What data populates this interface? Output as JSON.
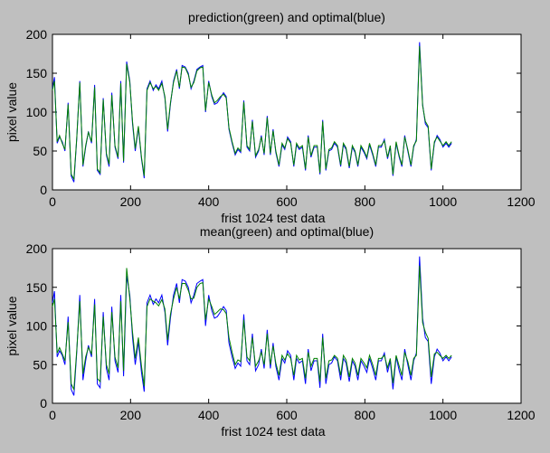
{
  "figure_background": "#bfbfbf",
  "colors": {
    "optimal": "#0000ff",
    "green": "#008000",
    "axes_bg": "#ffffff",
    "axis": "#000000"
  },
  "chart_data": [
    {
      "type": "line",
      "title": "prediction(green) and optimal(blue)",
      "xlabel": "frist 1024 test data",
      "ylabel": "pixel value",
      "xlim": [
        0,
        1200
      ],
      "ylim": [
        0,
        200
      ],
      "xticks": [
        0,
        200,
        400,
        600,
        800,
        1000,
        1200
      ],
      "yticks": [
        0,
        50,
        100,
        150,
        200
      ],
      "grid": false,
      "series": [
        {
          "color": "#0000ff",
          "x": [
            0,
            5,
            12,
            18,
            25,
            32,
            40,
            48,
            55,
            62,
            70,
            78,
            85,
            92,
            100,
            108,
            115,
            122,
            130,
            138,
            145,
            152,
            160,
            168,
            175,
            182,
            190,
            198,
            205,
            212,
            220,
            228,
            235,
            242,
            250,
            258,
            265,
            272,
            280,
            288,
            295,
            302,
            310,
            318,
            325,
            332,
            340,
            348,
            355,
            362,
            370,
            378,
            385,
            392,
            400,
            408,
            415,
            422,
            430,
            438,
            445,
            452,
            460,
            468,
            475,
            482,
            490,
            498,
            505,
            512,
            520,
            528,
            535,
            542,
            550,
            558,
            565,
            572,
            580,
            588,
            595,
            602,
            610,
            618,
            625,
            632,
            640,
            648,
            655,
            662,
            670,
            678,
            685,
            692,
            700,
            708,
            715,
            722,
            730,
            738,
            745,
            752,
            760,
            768,
            775,
            782,
            790,
            798,
            805,
            812,
            820,
            828,
            835,
            842,
            850,
            858,
            865,
            872,
            880,
            888,
            895,
            902,
            910,
            918,
            925,
            932,
            940,
            948,
            955,
            962,
            970,
            978,
            985,
            992,
            1000,
            1008,
            1015,
            1022
          ],
          "y": [
            130,
            145,
            60,
            68,
            62,
            50,
            112,
            18,
            10,
            65,
            140,
            30,
            55,
            75,
            60,
            135,
            25,
            20,
            118,
            45,
            30,
            125,
            55,
            40,
            140,
            35,
            165,
            140,
            85,
            50,
            80,
            40,
            15,
            130,
            140,
            128,
            135,
            130,
            140,
            118,
            75,
            110,
            140,
            155,
            130,
            160,
            158,
            150,
            130,
            140,
            155,
            158,
            160,
            100,
            140,
            120,
            110,
            112,
            118,
            125,
            120,
            78,
            60,
            45,
            52,
            48,
            115,
            55,
            50,
            90,
            42,
            50,
            70,
            45,
            95,
            45,
            78,
            48,
            30,
            58,
            52,
            68,
            62,
            30,
            58,
            52,
            55,
            25,
            70,
            42,
            55,
            55,
            20,
            90,
            25,
            50,
            52,
            60,
            55,
            30,
            58,
            52,
            28,
            55,
            48,
            30,
            55,
            48,
            40,
            58,
            45,
            30,
            55,
            55,
            65,
            40,
            55,
            18,
            60,
            42,
            30,
            70,
            50,
            30,
            55,
            65,
            190,
            110,
            85,
            80,
            25,
            60,
            70,
            65,
            55,
            60,
            55,
            60
          ]
        },
        {
          "color": "#008000",
          "x": [
            0,
            5,
            12,
            18,
            25,
            32,
            40,
            48,
            55,
            62,
            70,
            78,
            85,
            92,
            100,
            108,
            115,
            122,
            130,
            138,
            145,
            152,
            160,
            168,
            175,
            182,
            190,
            198,
            205,
            212,
            220,
            228,
            235,
            242,
            250,
            258,
            265,
            272,
            280,
            288,
            295,
            302,
            310,
            318,
            325,
            332,
            340,
            348,
            355,
            362,
            370,
            378,
            385,
            392,
            400,
            408,
            415,
            422,
            430,
            438,
            445,
            452,
            460,
            468,
            475,
            482,
            490,
            498,
            505,
            512,
            520,
            528,
            535,
            542,
            550,
            558,
            565,
            572,
            580,
            588,
            595,
            602,
            610,
            618,
            625,
            632,
            640,
            648,
            655,
            662,
            670,
            678,
            685,
            692,
            700,
            708,
            715,
            722,
            730,
            738,
            745,
            752,
            760,
            768,
            775,
            782,
            790,
            798,
            805,
            812,
            820,
            828,
            835,
            842,
            850,
            858,
            865,
            872,
            880,
            888,
            895,
            902,
            910,
            918,
            925,
            932,
            940,
            948,
            955,
            962,
            970,
            978,
            985,
            992,
            1000,
            1008,
            1015,
            1022
          ],
          "y": [
            128,
            140,
            62,
            70,
            60,
            52,
            110,
            20,
            14,
            66,
            138,
            32,
            57,
            74,
            62,
            132,
            27,
            22,
            116,
            47,
            33,
            122,
            57,
            42,
            137,
            37,
            162,
            138,
            88,
            53,
            82,
            42,
            18,
            128,
            138,
            130,
            133,
            128,
            137,
            120,
            78,
            112,
            138,
            153,
            132,
            158,
            157,
            148,
            132,
            138,
            153,
            157,
            158,
            102,
            138,
            122,
            112,
            115,
            120,
            123,
            118,
            80,
            62,
            47,
            54,
            50,
            113,
            57,
            52,
            88,
            44,
            52,
            68,
            47,
            93,
            47,
            76,
            50,
            32,
            60,
            54,
            66,
            60,
            32,
            60,
            54,
            57,
            27,
            68,
            44,
            57,
            57,
            22,
            88,
            27,
            52,
            54,
            62,
            57,
            32,
            60,
            54,
            30,
            57,
            50,
            32,
            57,
            50,
            42,
            60,
            47,
            32,
            57,
            57,
            63,
            42,
            57,
            20,
            62,
            44,
            32,
            68,
            52,
            32,
            57,
            63,
            185,
            108,
            88,
            82,
            27,
            62,
            68,
            63,
            57,
            62,
            57,
            62
          ]
        }
      ]
    },
    {
      "type": "line",
      "title": "mean(green) and optimal(blue)",
      "xlabel": "frist 1024 test data",
      "ylabel": "pixel value",
      "xlim": [
        0,
        1200
      ],
      "ylim": [
        0,
        200
      ],
      "xticks": [
        0,
        200,
        400,
        600,
        800,
        1000,
        1200
      ],
      "yticks": [
        0,
        50,
        100,
        150,
        200
      ],
      "grid": false,
      "series": [
        {
          "color": "#0000ff",
          "x": [
            0,
            5,
            12,
            18,
            25,
            32,
            40,
            48,
            55,
            62,
            70,
            78,
            85,
            92,
            100,
            108,
            115,
            122,
            130,
            138,
            145,
            152,
            160,
            168,
            175,
            182,
            190,
            198,
            205,
            212,
            220,
            228,
            235,
            242,
            250,
            258,
            265,
            272,
            280,
            288,
            295,
            302,
            310,
            318,
            325,
            332,
            340,
            348,
            355,
            362,
            370,
            378,
            385,
            392,
            400,
            408,
            415,
            422,
            430,
            438,
            445,
            452,
            460,
            468,
            475,
            482,
            490,
            498,
            505,
            512,
            520,
            528,
            535,
            542,
            550,
            558,
            565,
            572,
            580,
            588,
            595,
            602,
            610,
            618,
            625,
            632,
            640,
            648,
            655,
            662,
            670,
            678,
            685,
            692,
            700,
            708,
            715,
            722,
            730,
            738,
            745,
            752,
            760,
            768,
            775,
            782,
            790,
            798,
            805,
            812,
            820,
            828,
            835,
            842,
            850,
            858,
            865,
            872,
            880,
            888,
            895,
            902,
            910,
            918,
            925,
            932,
            940,
            948,
            955,
            962,
            970,
            978,
            985,
            992,
            1000,
            1008,
            1015,
            1022
          ],
          "y": [
            130,
            145,
            60,
            68,
            62,
            50,
            112,
            18,
            10,
            65,
            140,
            30,
            55,
            75,
            60,
            135,
            25,
            20,
            118,
            45,
            30,
            125,
            55,
            40,
            140,
            35,
            165,
            140,
            85,
            50,
            80,
            40,
            15,
            130,
            140,
            128,
            135,
            130,
            140,
            118,
            75,
            110,
            140,
            155,
            130,
            160,
            158,
            150,
            130,
            140,
            155,
            158,
            160,
            100,
            140,
            120,
            110,
            112,
            118,
            125,
            120,
            78,
            60,
            45,
            52,
            48,
            115,
            55,
            50,
            90,
            42,
            50,
            70,
            45,
            95,
            45,
            78,
            48,
            30,
            58,
            52,
            68,
            62,
            30,
            58,
            52,
            55,
            25,
            70,
            42,
            55,
            55,
            20,
            90,
            25,
            50,
            52,
            60,
            55,
            30,
            58,
            52,
            28,
            55,
            48,
            30,
            55,
            48,
            40,
            58,
            45,
            30,
            55,
            55,
            65,
            40,
            55,
            18,
            60,
            42,
            30,
            70,
            50,
            30,
            55,
            65,
            190,
            110,
            85,
            80,
            25,
            60,
            70,
            65,
            55,
            60,
            55,
            60
          ]
        },
        {
          "color": "#008000",
          "x": [
            0,
            5,
            12,
            18,
            25,
            32,
            40,
            48,
            55,
            62,
            70,
            78,
            85,
            92,
            100,
            108,
            115,
            122,
            130,
            138,
            145,
            152,
            160,
            168,
            175,
            182,
            190,
            198,
            205,
            212,
            220,
            228,
            235,
            242,
            250,
            258,
            265,
            272,
            280,
            288,
            295,
            302,
            310,
            318,
            325,
            332,
            340,
            348,
            355,
            362,
            370,
            378,
            385,
            392,
            400,
            408,
            415,
            422,
            430,
            438,
            445,
            452,
            460,
            468,
            475,
            482,
            490,
            498,
            505,
            512,
            520,
            528,
            535,
            542,
            550,
            558,
            565,
            572,
            580,
            588,
            595,
            602,
            610,
            618,
            625,
            632,
            640,
            648,
            655,
            662,
            670,
            678,
            685,
            692,
            700,
            708,
            715,
            722,
            730,
            738,
            745,
            752,
            760,
            768,
            775,
            782,
            790,
            798,
            805,
            812,
            820,
            828,
            835,
            842,
            850,
            858,
            865,
            872,
            880,
            888,
            895,
            902,
            910,
            918,
            925,
            932,
            940,
            948,
            955,
            962,
            970,
            978,
            985,
            992,
            1000,
            1008,
            1015,
            1022
          ],
          "y": [
            125,
            135,
            65,
            72,
            64,
            55,
            105,
            25,
            18,
            68,
            132,
            38,
            60,
            72,
            64,
            128,
            32,
            28,
            112,
            50,
            38,
            118,
            60,
            46,
            132,
            42,
            175,
            135,
            92,
            58,
            85,
            48,
            22,
            125,
            135,
            132,
            130,
            126,
            134,
            122,
            82,
            115,
            135,
            150,
            135,
            155,
            155,
            146,
            135,
            136,
            150,
            155,
            156,
            108,
            135,
            125,
            115,
            118,
            122,
            121,
            116,
            85,
            66,
            50,
            56,
            54,
            108,
            60,
            55,
            85,
            48,
            55,
            66,
            50,
            90,
            50,
            74,
            52,
            36,
            62,
            56,
            64,
            58,
            36,
            62,
            56,
            58,
            32,
            66,
            48,
            58,
            58,
            28,
            85,
            32,
            55,
            56,
            62,
            58,
            36,
            62,
            56,
            34,
            58,
            52,
            36,
            58,
            52,
            46,
            62,
            50,
            36,
            58,
            58,
            62,
            46,
            58,
            26,
            62,
            48,
            36,
            66,
            54,
            36,
            58,
            62,
            178,
            104,
            92,
            84,
            34,
            64,
            66,
            62,
            58,
            62,
            58,
            62
          ]
        }
      ]
    }
  ]
}
